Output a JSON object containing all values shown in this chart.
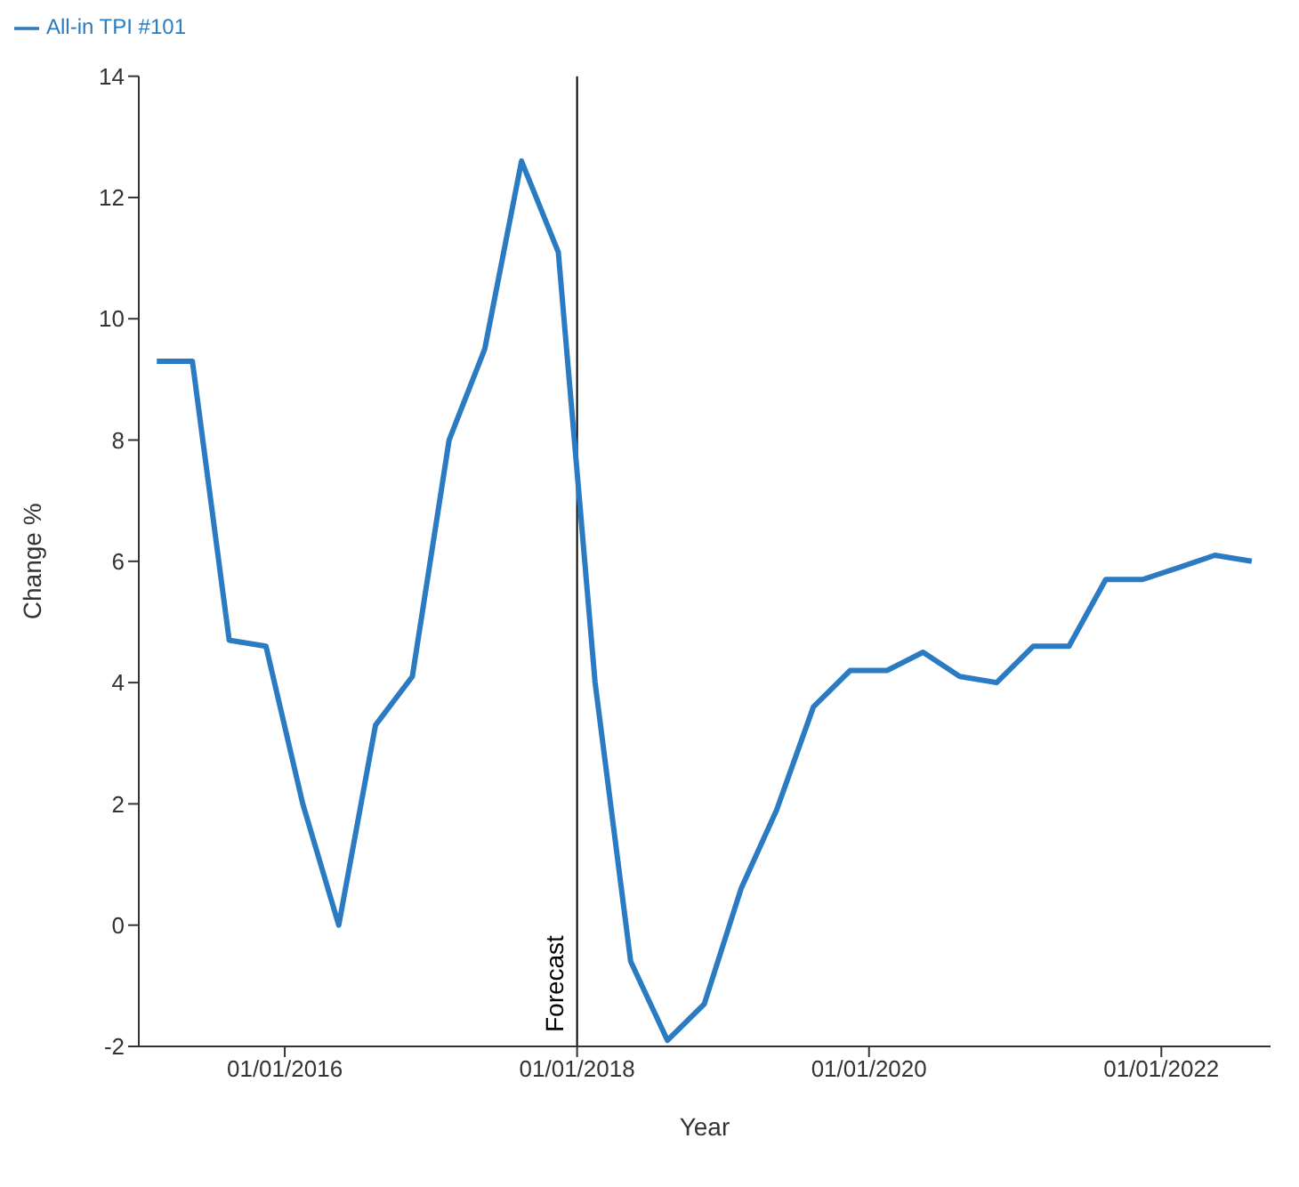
{
  "chart_data": {
    "type": "line",
    "xlabel": "Year",
    "ylabel": "Change %",
    "x": [
      "2015-02-15",
      "2015-05-15",
      "2015-08-15",
      "2015-11-15",
      "2016-02-15",
      "2016-05-15",
      "2016-08-15",
      "2016-11-15",
      "2017-02-15",
      "2017-05-15",
      "2017-08-15",
      "2017-11-15",
      "2018-02-15",
      "2018-05-15",
      "2018-08-15",
      "2018-11-15",
      "2019-02-15",
      "2019-05-15",
      "2019-08-15",
      "2019-11-15",
      "2020-02-15",
      "2020-05-15",
      "2020-08-15",
      "2020-11-15",
      "2021-02-15",
      "2021-05-15",
      "2021-08-15",
      "2021-11-15",
      "2022-02-15",
      "2022-05-15",
      "2022-08-15"
    ],
    "series": [
      {
        "name": "All-in TPI #101",
        "color": "#2a7bc2",
        "values": [
          9.3,
          9.3,
          4.7,
          4.6,
          2.0,
          0.0,
          3.3,
          4.1,
          8.0,
          9.5,
          12.6,
          11.1,
          4.0,
          -0.6,
          -1.9,
          -1.3,
          0.6,
          1.9,
          3.6,
          4.2,
          4.2,
          4.5,
          4.1,
          4.0,
          4.6,
          4.6,
          5.7,
          5.7,
          5.9,
          6.1,
          6.0
        ]
      }
    ],
    "xlim": [
      "2015-01-01",
      "2022-10-01"
    ],
    "xticks": [
      {
        "value": "2016-01-01",
        "label": "01/01/2016"
      },
      {
        "value": "2018-01-01",
        "label": "01/01/2018"
      },
      {
        "value": "2020-01-01",
        "label": "01/01/2020"
      },
      {
        "value": "2022-01-01",
        "label": "01/01/2022"
      }
    ],
    "ylim": [
      -2,
      14
    ],
    "yticks": [
      -2,
      0,
      2,
      4,
      6,
      8,
      10,
      12,
      14
    ],
    "ref_lines": [
      {
        "axis": "x",
        "value": "2018-01-01",
        "label": "Forecast",
        "color": "#000000"
      }
    ],
    "legend": "top left",
    "grid": false,
    "marker": "none",
    "line_style": "solid"
  }
}
